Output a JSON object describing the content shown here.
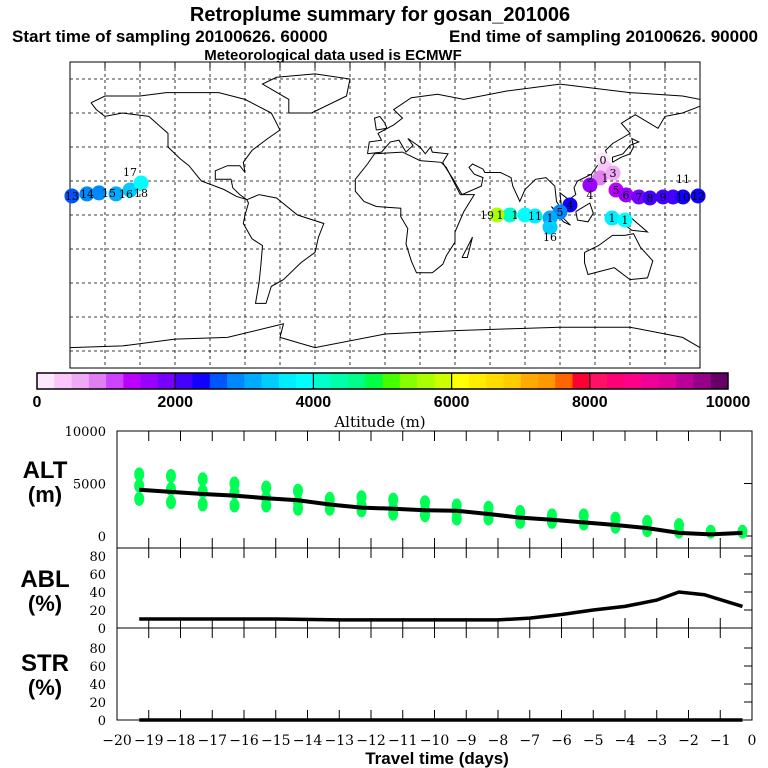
{
  "header": {
    "title": "Retroplume summary for gosan_201006",
    "start": "Start time of sampling 20100626. 60000",
    "end": "End time of sampling 20100626. 90000",
    "met": "Meteorological data used is ECMWF"
  },
  "colorbar": {
    "label": "Altitude (m)",
    "range": [
      0,
      10000
    ],
    "step": 250,
    "ticks": [
      "0",
      "2000",
      "4000",
      "6000",
      "8000",
      "10000"
    ],
    "colors": [
      "#ffe8ff",
      "#f9c8f9",
      "#f0aaf5",
      "#e080f0",
      "#cc44ff",
      "#bb00ff",
      "#9900ff",
      "#7700ff",
      "#4400ff",
      "#1100ff",
      "#0055ff",
      "#0088ff",
      "#00aaff",
      "#00ccff",
      "#00eeff",
      "#00ffff",
      "#00ffcc",
      "#00ffaa",
      "#00ff88",
      "#00ff44",
      "#44ff00",
      "#88ff00",
      "#aaff00",
      "#ccff00",
      "#ffff00",
      "#ffee00",
      "#ffdd00",
      "#ffcc00",
      "#ffaa00",
      "#ff9900",
      "#ff6600",
      "#ff0033",
      "#ff1166",
      "#ff0077",
      "#ff0088",
      "#ee0099",
      "#dd0099",
      "#bb0099",
      "#990088",
      "#660066"
    ]
  },
  "chart_data": [
    {
      "type": "scatter",
      "title": "Retroplume map",
      "xlim": [
        -180,
        180
      ],
      "ylim": [
        -90,
        90
      ],
      "grid": true,
      "points": [
        {
          "lon": 124.6,
          "lat": 32.4,
          "alt": 200,
          "label": "0"
        },
        {
          "lon": 125.7,
          "lat": 27.6,
          "alt": 400,
          "label": "1"
        },
        {
          "lon": 122.9,
          "lat": 21.8,
          "alt": 900,
          "label": "2"
        },
        {
          "lon": 130.3,
          "lat": 24.7,
          "alt": 700,
          "label": "3"
        },
        {
          "lon": 117.1,
          "lat": 17.6,
          "alt": 1500,
          "label": "4"
        },
        {
          "lon": 132.0,
          "lat": 14.7,
          "alt": 1400,
          "label": "5"
        },
        {
          "lon": 137.7,
          "lat": 11.8,
          "alt": 1600,
          "label": "6"
        },
        {
          "lon": 145.1,
          "lat": 10.6,
          "alt": 1800,
          "label": "7"
        },
        {
          "lon": 151.4,
          "lat": 10.0,
          "alt": 2000,
          "label": "8"
        },
        {
          "lon": 158.9,
          "lat": 10.6,
          "alt": 2100,
          "label": "9"
        },
        {
          "lon": 164.6,
          "lat": 10.6,
          "alt": 2200,
          "label": "10"
        },
        {
          "lon": 170.3,
          "lat": 10.6,
          "alt": 2300,
          "label": "11"
        },
        {
          "lon": 178.9,
          "lat": 11.2,
          "alt": 2400,
          "label": "12"
        },
        {
          "lon": -178.9,
          "lat": 11.2,
          "alt": 2600,
          "label": "13"
        },
        {
          "lon": -170.3,
          "lat": 12.4,
          "alt": 2800,
          "label": "14"
        },
        {
          "lon": -163.4,
          "lat": 13.0,
          "alt": 2900,
          "label": "15"
        },
        {
          "lon": -153.7,
          "lat": 12.4,
          "alt": 3100,
          "label": "16"
        },
        {
          "lon": -145.7,
          "lat": 14.7,
          "alt": 3300,
          "label": "17"
        },
        {
          "lon": -139.4,
          "lat": 18.8,
          "alt": 3800,
          "label": "18"
        },
        {
          "lon": 105.7,
          "lat": 5.9,
          "alt": 2300,
          "label": "4"
        },
        {
          "lon": 100.0,
          "lat": 1.8,
          "alt": 2800,
          "label": "5"
        },
        {
          "lon": 94.3,
          "lat": -1.8,
          "alt": 3200,
          "label": "1"
        },
        {
          "lon": 94.3,
          "lat": -7.1,
          "alt": 3300,
          "label": "16"
        },
        {
          "lon": 85.7,
          "lat": -0.6,
          "alt": 3600,
          "label": "11"
        },
        {
          "lon": 80.0,
          "lat": 0.0,
          "alt": 3900,
          "label": "1"
        },
        {
          "lon": 71.4,
          "lat": 0.0,
          "alt": 4000,
          "label": "1"
        },
        {
          "lon": 64.0,
          "lat": 0.0,
          "alt": 5600,
          "label": "19"
        },
        {
          "lon": 129.7,
          "lat": -1.8,
          "alt": 3700,
          "label": "1"
        },
        {
          "lon": 137.1,
          "lat": -3.0,
          "alt": 3900,
          "label": "1"
        }
      ]
    },
    {
      "type": "scatter",
      "panel": "ALT",
      "ylabel": "ALT (m)",
      "ylim": [
        0,
        10000
      ],
      "yticks": [
        "10000",
        "5000",
        "0"
      ],
      "x": [
        -19.3,
        -18.3,
        -17.3,
        -16.3,
        -15.3,
        -14.3,
        -13.3,
        -12.3,
        -11.3,
        -10.3,
        -9.3,
        -8.3,
        -7.3,
        -6.3,
        -5.3,
        -4.3,
        -3.3,
        -2.3,
        -1.3,
        -0.3
      ],
      "clusters": [
        [
          5875,
          4780,
          3530
        ],
        [
          5720,
          4470,
          3220
        ],
        [
          5400,
          4250,
          3000
        ],
        [
          5000,
          4150,
          2900
        ],
        [
          4620,
          3620,
          2900
        ],
        [
          4310,
          3220,
          2590
        ],
        [
          3530,
          3060,
          2590
        ],
        [
          3690,
          2900,
          2440
        ],
        [
          3470,
          2590,
          2130
        ],
        [
          3220,
          2440,
          1970
        ],
        [
          2900,
          2280,
          1660
        ],
        [
          2690,
          1970,
          1660
        ],
        [
          2280,
          1660,
          1340
        ],
        [
          1970,
          1340
        ],
        [
          1970,
          1190
        ],
        [
          1660,
          880
        ],
        [
          1340,
          560
        ],
        [
          1030,
          410
        ],
        [
          410
        ],
        [
          410
        ]
      ],
      "mean": [
        4400,
        4200,
        4000,
        3850,
        3600,
        3400,
        3000,
        2700,
        2600,
        2450,
        2400,
        2100,
        1750,
        1550,
        1300,
        1050,
        750,
        300,
        150,
        300
      ],
      "point_color": "#00ff55"
    },
    {
      "type": "line",
      "panel": "ABL",
      "ylabel": "ABL (%)",
      "ylim": [
        0,
        100
      ],
      "yticks": [
        "80",
        "60",
        "40",
        "20",
        "0"
      ],
      "x": [
        -19.3,
        -17,
        -15,
        -13,
        -11,
        -9,
        -8,
        -7,
        -6,
        -5,
        -4,
        -3,
        -2.3,
        -1.5,
        -0.3
      ],
      "values": [
        10,
        10,
        10,
        9,
        9,
        9,
        9,
        11,
        15,
        20,
        24,
        31,
        40,
        37,
        24
      ]
    },
    {
      "type": "line",
      "panel": "STR",
      "ylabel": "STR (%)",
      "ylim": [
        0,
        100
      ],
      "yticks": [
        "80",
        "60",
        "40",
        "20",
        "0"
      ],
      "x": [
        -19.3,
        -0.3
      ],
      "values": [
        0,
        0
      ]
    }
  ],
  "panels": {
    "alt_label": [
      "ALT",
      "(m)"
    ],
    "abl_label": [
      "ABL",
      "(%)"
    ],
    "str_label": [
      "STR",
      "(%)"
    ]
  },
  "xaxis": {
    "label": "Travel time (days)",
    "ticks": [
      "−20",
      "−19",
      "−18",
      "−17",
      "−16",
      "−15",
      "−14",
      "−13",
      "−12",
      "−11",
      "−10",
      "−9",
      "−8",
      "−7",
      "−6",
      "−5",
      "−4",
      "−3",
      "−2",
      "−1",
      "0"
    ]
  }
}
